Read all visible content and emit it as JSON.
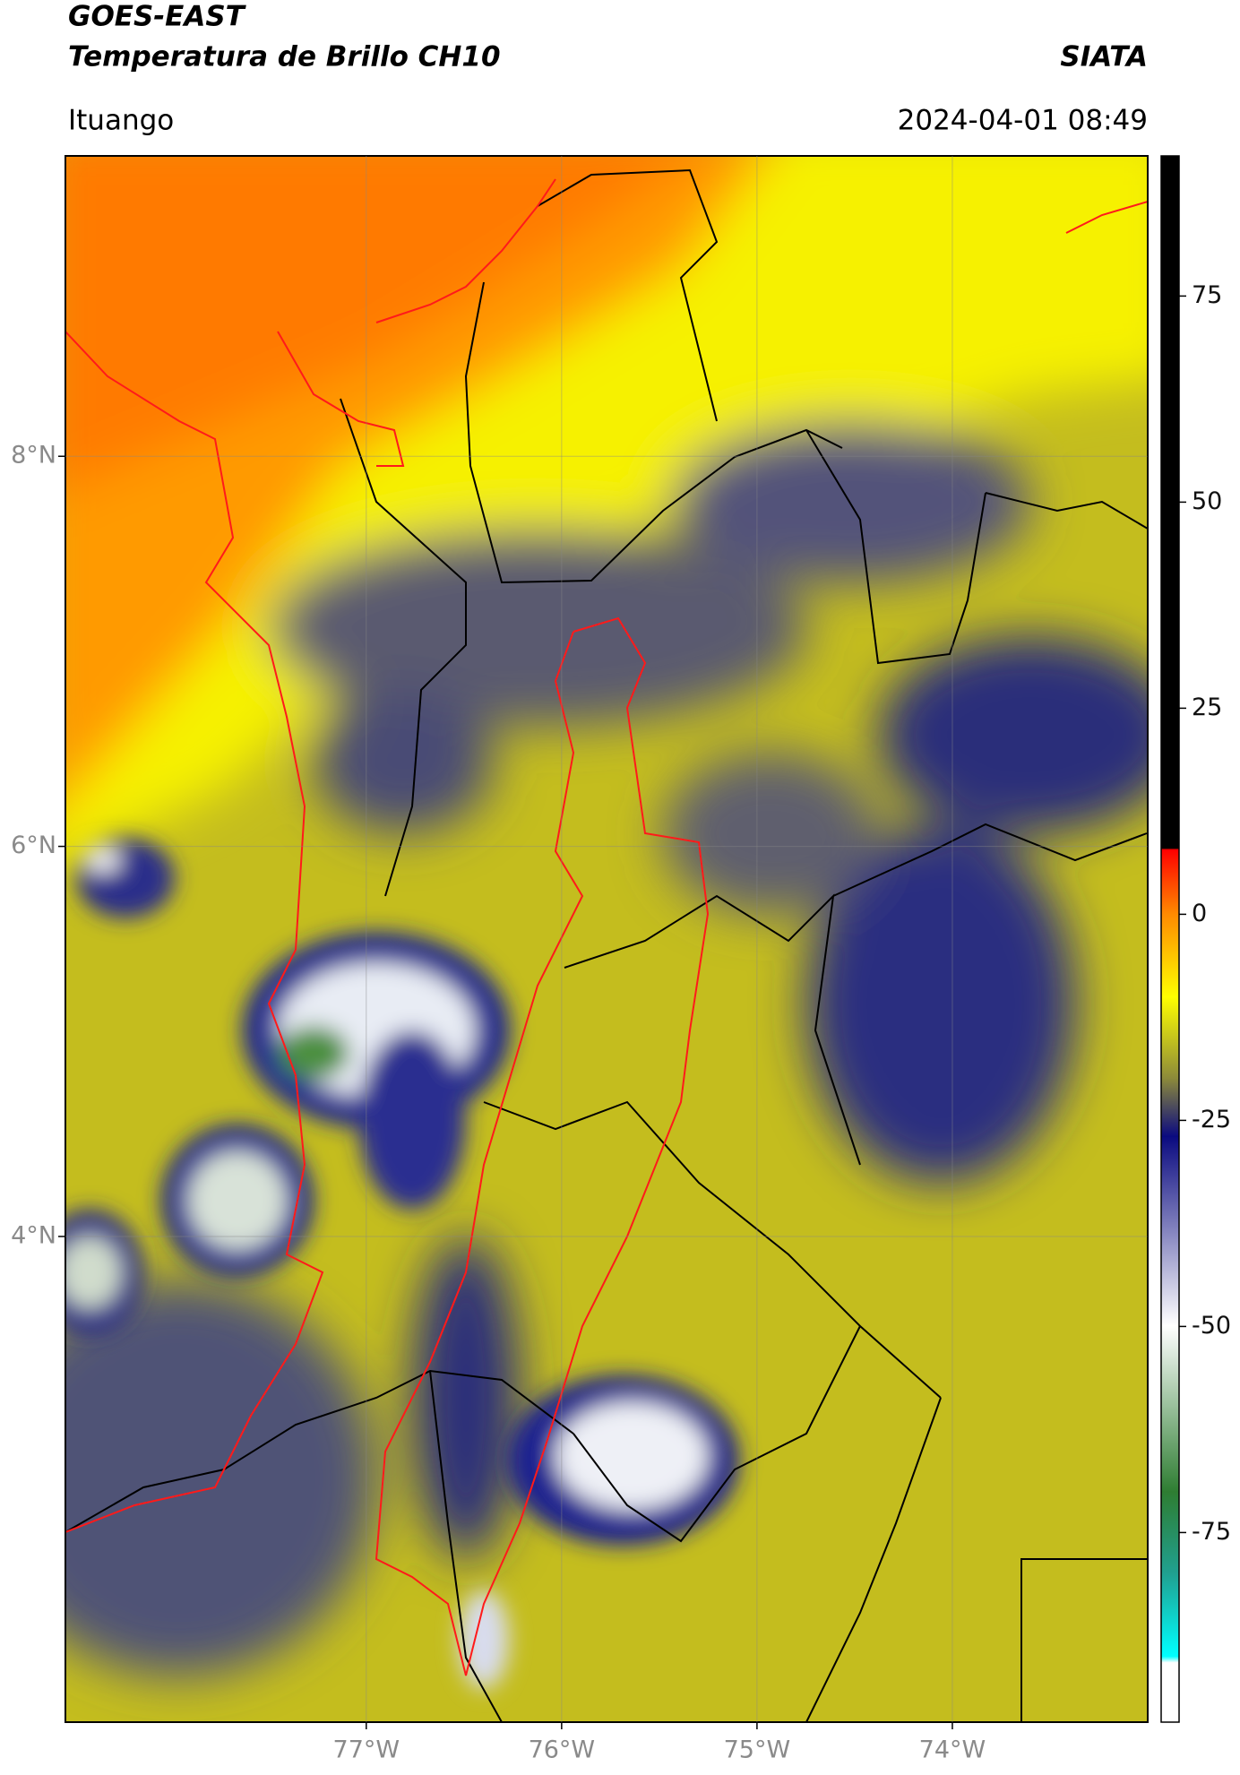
{
  "header": {
    "title": "GOES-EAST",
    "subtitle": "Temperatura de Brillo CH10",
    "source": "SIATA",
    "location": "Ituango",
    "datetime": "2024-04-01 08:49"
  },
  "map": {
    "xlim": [
      -78.54,
      -73.0
    ],
    "ylim": [
      1.51,
      9.54
    ],
    "xticks": [
      {
        "value": -77,
        "label": "77°W"
      },
      {
        "value": -76,
        "label": "76°W"
      },
      {
        "value": -75,
        "label": "75°W"
      },
      {
        "value": -74,
        "label": "74°W"
      }
    ],
    "yticks": [
      {
        "value": 8,
        "label": "8°N"
      },
      {
        "value": 6,
        "label": "6°N"
      },
      {
        "value": 4,
        "label": "4°N"
      }
    ],
    "grid": true
  },
  "colorbar": {
    "clim": [
      -98,
      92
    ],
    "ticks": [
      75,
      50,
      25,
      0,
      -25,
      -50,
      -75
    ]
  }
}
